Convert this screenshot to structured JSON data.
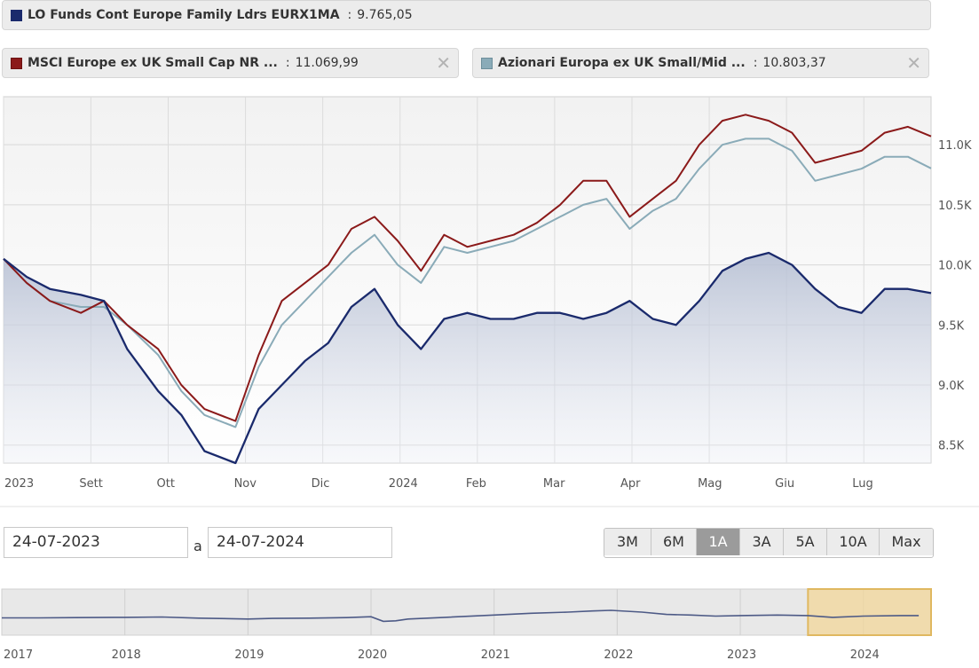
{
  "legend": {
    "fund": {
      "name": "LO Funds Cont Europe Family Ldrs EURX1MA",
      "value": "9.765,05",
      "color": "#1a2a6c"
    },
    "benchmark": {
      "name": "MSCI Europe ex UK Small Cap NR ...",
      "value": "11.069,99",
      "color": "#8b1a1a",
      "close": "✕"
    },
    "category": {
      "name": "Azionari Europa ex UK Small/Mid ...",
      "value": "10.803,37",
      "color": "#8aabb8",
      "close": "✕"
    },
    "separator": ":"
  },
  "chart_data": [
    {
      "type": "line",
      "x_ticks": [
        "2023",
        "Sett",
        "Ott",
        "Nov",
        "Dic",
        "2024",
        "Feb",
        "Mar",
        "Apr",
        "Mag",
        "Giu",
        "Lug"
      ],
      "y_ticks": [
        "8.5K",
        "9.0K",
        "9.5K",
        "10.0K",
        "10.5K",
        "11.0K"
      ],
      "ylim": [
        8350,
        11400
      ],
      "grid": true,
      "x_months": [
        0,
        0.3,
        0.6,
        1.0,
        1.3,
        1.6,
        2.0,
        2.3,
        2.6,
        3.0,
        3.3,
        3.6,
        3.9,
        4.2,
        4.5,
        4.8,
        5.1,
        5.4,
        5.7,
        6.0,
        6.3,
        6.6,
        6.9,
        7.2,
        7.5,
        7.8,
        8.1,
        8.4,
        8.7,
        9.0,
        9.3,
        9.6,
        9.9,
        10.2,
        10.5,
        10.8,
        11.1,
        11.4,
        11.7,
        12.0
      ],
      "series": [
        {
          "name": "LO Funds Cont Europe Family Ldrs EURX1MA",
          "color": "#1a2a6c",
          "values": [
            10050,
            9900,
            9800,
            9750,
            9700,
            9300,
            8950,
            8750,
            8450,
            8350,
            8800,
            9000,
            9200,
            9350,
            9650,
            9800,
            9500,
            9300,
            9550,
            9600,
            9550,
            9550,
            9600,
            9600,
            9550,
            9600,
            9700,
            9550,
            9500,
            9700,
            9950,
            10050,
            10100,
            10000,
            9800,
            9650,
            9600,
            9800,
            9800,
            9765
          ]
        },
        {
          "name": "MSCI Europe ex UK Small Cap NR ...",
          "color": "#8b1a1a",
          "values": [
            10050,
            9850,
            9700,
            9600,
            9700,
            9500,
            9300,
            9000,
            8800,
            8700,
            9250,
            9700,
            9850,
            10000,
            10300,
            10400,
            10200,
            9950,
            10250,
            10150,
            10200,
            10250,
            10350,
            10500,
            10700,
            10700,
            10400,
            10550,
            10700,
            11000,
            11200,
            11250,
            11200,
            11100,
            10850,
            10900,
            10950,
            11100,
            11150,
            11070
          ]
        },
        {
          "name": "Azionari Europa ex UK Small/Mid ...",
          "color": "#8aabb8",
          "values": [
            10050,
            9850,
            9700,
            9650,
            9650,
            9500,
            9250,
            8950,
            8750,
            8650,
            9150,
            9500,
            9700,
            9900,
            10100,
            10250,
            10000,
            9850,
            10150,
            10100,
            10150,
            10200,
            10300,
            10400,
            10500,
            10550,
            10300,
            10450,
            10550,
            10800,
            11000,
            11050,
            11050,
            10950,
            10700,
            10750,
            10800,
            10900,
            10900,
            10803
          ]
        }
      ]
    },
    {
      "type": "area",
      "x_ticks": [
        "2017",
        "2018",
        "2019",
        "2020",
        "2021",
        "2022",
        "2023",
        "2024"
      ],
      "x_years": [
        2017.0,
        2017.3,
        2017.6,
        2018.0,
        2018.3,
        2018.6,
        2019.0,
        2019.2,
        2019.5,
        2019.8,
        2020.0,
        2020.1,
        2020.2,
        2020.3,
        2020.6,
        2021.0,
        2021.3,
        2021.6,
        2021.8,
        2021.95,
        2022.2,
        2022.4,
        2022.6,
        2022.8,
        2023.0,
        2023.3,
        2023.55,
        2023.75,
        2024.0,
        2024.3,
        2024.45
      ],
      "values": [
        10,
        10,
        10.5,
        11,
        11.5,
        9.5,
        8,
        9,
        9.5,
        10.5,
        12,
        4,
        5,
        8,
        11,
        15,
        18,
        20,
        22,
        23,
        20,
        16,
        15,
        13,
        14,
        15,
        14,
        11,
        13,
        14,
        14
      ],
      "selected_range": [
        2023.55,
        2024.55
      ],
      "color": "#4d5a86"
    }
  ],
  "range": {
    "from": "24-07-2023",
    "to_label": "a",
    "to": "24-07-2024",
    "buttons": [
      "3M",
      "6M",
      "1A",
      "3A",
      "5A",
      "10A",
      "Max"
    ],
    "active": "1A"
  }
}
